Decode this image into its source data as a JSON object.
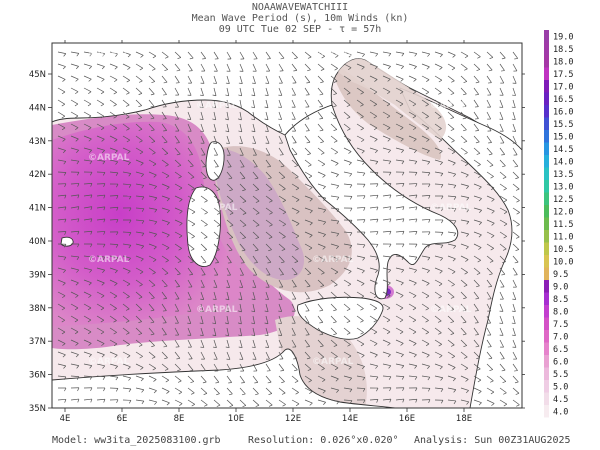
{
  "header": {
    "line1": "NOAAWAVEWATCHIII",
    "line2": "Mean Wave Period (s), 10m Winds (kn)",
    "line3": "09 UTC Tue 02 SEP  -  τ = 57h"
  },
  "watermark": "©ARPAL",
  "axes": {
    "lon_labels": [
      "4E",
      "6E",
      "8E",
      "10E",
      "12E",
      "14E",
      "16E",
      "18E"
    ],
    "lat_labels": [
      "45N",
      "44N",
      "43N",
      "42N",
      "41N",
      "40N",
      "39N",
      "38N",
      "37N",
      "36N",
      "35N"
    ]
  },
  "colorbar": {
    "labels": [
      "19.0",
      "18.5",
      "18.0",
      "17.5",
      "17.0",
      "16.5",
      "16.0",
      "15.5",
      "15.0",
      "14.5",
      "14.0",
      "13.5",
      "13.0",
      "12.5",
      "12.0",
      "11.5",
      "11.0",
      "10.5",
      "10.0",
      "9.5",
      "9.0",
      "8.5",
      "8.0",
      "7.5",
      "7.0",
      "6.5",
      "6.0",
      "5.5",
      "5.0",
      "4.5",
      "4.0"
    ],
    "colors": [
      "#9a3ea8",
      "#a03aa8",
      "#a537a6",
      "#c034c2",
      "#7f1cb8",
      "#6a21c2",
      "#5630cc",
      "#4052d4",
      "#2f74dc",
      "#2796e2",
      "#26b0dc",
      "#2ac2c4",
      "#2fc8a4",
      "#3cc47e",
      "#4cbc5c",
      "#6dbb4e",
      "#97c04a",
      "#bfc74a",
      "#d9c451",
      "#e1b45c",
      "#8b1fb5",
      "#a72fd1",
      "#c33fcf",
      "#d452c7",
      "#df68c6",
      "#e683cc",
      "#e9a1d2",
      "#ecb9dc",
      "#efcde4",
      "#f2dde9",
      "#f7ecf0"
    ]
  },
  "footer": {
    "model": "Model: ww3ita_2025083100.grb",
    "resolution": "Resolution: 0.026°x0.020°",
    "analysis": "Analysis: Sun 00Z31AUG2025"
  }
}
